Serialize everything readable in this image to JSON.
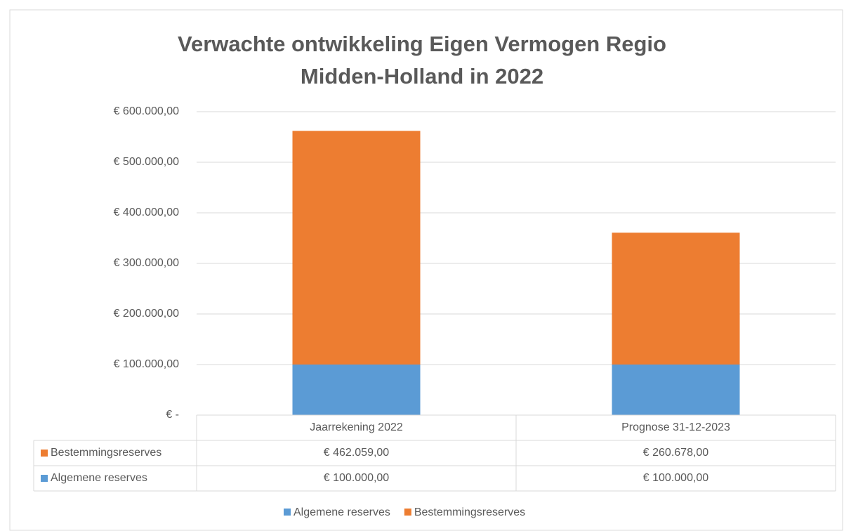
{
  "chart_data": {
    "type": "stacked_bar",
    "title": "Verwachte ontwikkeling Eigen Vermogen Regio Midden-Holland in 2022",
    "categories": [
      "Jaarrekening 2022",
      "Prognose 31-12-2023"
    ],
    "series": [
      {
        "name": "Algemene reserves",
        "color": "#5b9bd5",
        "values": [
          100000,
          100000
        ],
        "value_labels": [
          "€ 100.000,00",
          "€ 100.000,00"
        ]
      },
      {
        "name": "Bestemmingsreserves",
        "color": "#ed7d31",
        "values": [
          462059,
          260678
        ],
        "value_labels": [
          "€ 462.059,00",
          "€ 260.678,00"
        ]
      }
    ],
    "ylim": [
      0,
      600000
    ],
    "yticks": [
      {
        "value": 0,
        "label": "€ -"
      },
      {
        "value": 100000,
        "label": "€ 100.000,00"
      },
      {
        "value": 200000,
        "label": "€ 200.000,00"
      },
      {
        "value": 300000,
        "label": "€ 300.000,00"
      },
      {
        "value": 400000,
        "label": "€ 400.000,00"
      },
      {
        "value": 500000,
        "label": "€ 500.000,00"
      },
      {
        "value": 600000,
        "label": "€ 600.000,00"
      }
    ],
    "grid": true,
    "legend": "bottom"
  }
}
